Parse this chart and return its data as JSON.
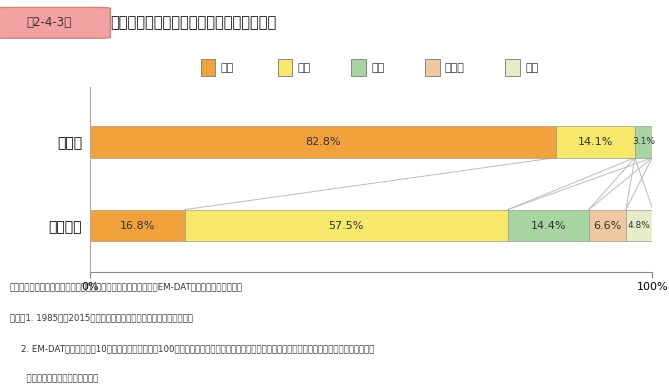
{
  "title_badge": "第2-4-3図",
  "title_main": "日本における自然災害被害額の災害別割合",
  "legend_labels": [
    "地震",
    "台風",
    "洪水",
    "地滑り",
    "火山"
  ],
  "bar_labels": [
    "被害額",
    "発生件数"
  ],
  "rows": [
    [
      82.8,
      14.1,
      3.1,
      0.0,
      0.0
    ],
    [
      16.8,
      57.5,
      14.4,
      6.6,
      4.8
    ]
  ],
  "row_texts": [
    [
      "82.8%",
      "14.1%",
      "3.1%",
      "",
      ""
    ],
    [
      "16.8%",
      "57.5%",
      "14.4%",
      "6.6%",
      "4.8%"
    ]
  ],
  "colors": [
    "#F2A23C",
    "#F5E86B",
    "#A8D4A2",
    "#F0C8A0",
    "#E5EEC8"
  ],
  "note1": "資料：ルーバン・カトリック大学疫学研究所災害データベース（EM-DAT）から中小企業庁作成",
  "note2": "（注）1. 1985年〜2015年の自然災害による被害額を集計している。",
  "note3": "    2. EM-DATでは「死者が10人以上」、「被災者が100人以上」、「緊急事態宣言の発令」、「国際救援の要請」のいずれかに該当する事象を",
  "note4": "      「災害」として登録している。",
  "bg_color": "#FFFFFF",
  "connector_color": "#BBBBBB",
  "badge_bg": "#F2A0A0",
  "badge_border": "#D08080"
}
